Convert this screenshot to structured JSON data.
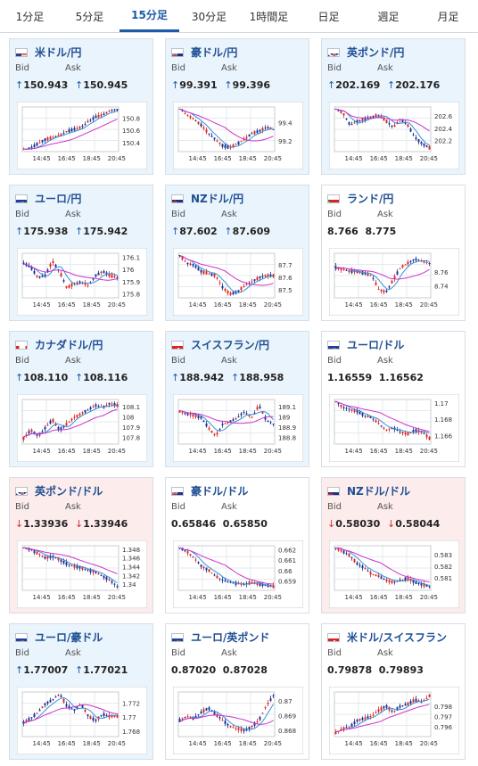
{
  "tabs": [
    "1分足",
    "5分足",
    "15分足",
    "30分足",
    "1時間足",
    "日足",
    "週足",
    "月足"
  ],
  "active_tab": 2,
  "bid_label": "Bid",
  "ask_label": "Ask",
  "x_ticks": [
    "14:45",
    "16:45",
    "18:45",
    "20:45"
  ],
  "colors": {
    "up_bg": "#eaf4fc",
    "down_bg": "#fcecec",
    "candle_up": "#e0261e",
    "candle_down": "#1b2f8f",
    "ma_short": "#3a8fd8",
    "ma_long": "#cc33cc"
  },
  "cards": [
    {
      "pair": "米ドル/円",
      "flag": "us",
      "trend": "up",
      "bid": "150.943",
      "ask": "150.945",
      "bid_dir": "up",
      "ask_dir": "up",
      "yticks": [
        "150.8",
        "150.6",
        "150.4"
      ],
      "chart": {
        "open": 150.32,
        "close": 150.93,
        "ymin": 150.28,
        "ymax": 150.95,
        "path": [
          0,
          0.05,
          0.15,
          0.25,
          0.3,
          0.35,
          0.45,
          0.5,
          0.55,
          0.7,
          0.8,
          0.85,
          0.95,
          1.0
        ]
      }
    },
    {
      "pair": "豪ドル/円",
      "flag": "au",
      "trend": "up",
      "bid": "99.391",
      "ask": "99.396",
      "bid_dir": "up",
      "ask_dir": "up",
      "yticks": [
        "99.4",
        "99.2"
      ],
      "chart": {
        "open": 99.52,
        "close": 99.39,
        "ymin": 99.1,
        "ymax": 99.55,
        "path": [
          1,
          0.85,
          0.75,
          0.6,
          0.4,
          0.25,
          0.1,
          0.05,
          0.15,
          0.25,
          0.4,
          0.45,
          0.55,
          0.5
        ]
      }
    },
    {
      "pair": "英ポンド/円",
      "flag": "gb",
      "trend": "up",
      "bid": "202.169",
      "ask": "202.176",
      "bid_dir": "up",
      "ask_dir": "up",
      "yticks": [
        "202.6",
        "202.4",
        "202.2"
      ],
      "chart": {
        "open": 202.68,
        "close": 202.17,
        "ymin": 202.05,
        "ymax": 202.72,
        "path": [
          1,
          0.9,
          0.6,
          0.7,
          0.75,
          0.8,
          0.85,
          0.7,
          0.55,
          0.75,
          0.6,
          0.3,
          0.15,
          0.05
        ]
      }
    },
    {
      "pair": "ユーロ/円",
      "flag": "eu",
      "trend": "up",
      "bid": "175.938",
      "ask": "175.942",
      "bid_dir": "up",
      "ask_dir": "up",
      "yticks": [
        "176.1",
        "176",
        "175.9",
        "175.8"
      ],
      "chart": {
        "open": 176.05,
        "close": 175.94,
        "ymin": 175.78,
        "ymax": 176.12,
        "path": [
          0.8,
          0.7,
          0.45,
          0.5,
          0.85,
          0.6,
          0.2,
          0.3,
          0.35,
          0.25,
          0.5,
          0.6,
          0.5,
          0.45
        ]
      }
    },
    {
      "pair": "NZドル/円",
      "flag": "nz",
      "trend": "up",
      "bid": "87.602",
      "ask": "87.609",
      "bid_dir": "up",
      "ask_dir": "up",
      "yticks": [
        "87.7",
        "87.6",
        "87.5"
      ],
      "chart": {
        "open": 87.72,
        "close": 87.6,
        "ymin": 87.45,
        "ymax": 87.78,
        "path": [
          1,
          0.8,
          0.75,
          0.6,
          0.55,
          0.5,
          0.2,
          0.05,
          0.1,
          0.25,
          0.35,
          0.45,
          0.5,
          0.5
        ]
      }
    },
    {
      "pair": "ランド/円",
      "flag": "za",
      "trend": "none",
      "bid": "8.766",
      "ask": "8.775",
      "bid_dir": "",
      "ask_dir": "",
      "yticks": [
        "8.76",
        "8.74"
      ],
      "chart": {
        "open": 8.77,
        "close": 8.766,
        "ymin": 8.725,
        "ymax": 8.785,
        "path": [
          0.7,
          0.65,
          0.6,
          0.6,
          0.55,
          0.5,
          0.15,
          0.1,
          0.4,
          0.7,
          0.8,
          0.9,
          0.85,
          0.8
        ]
      }
    },
    {
      "pair": "カナダドル/円",
      "flag": "ca",
      "trend": "up",
      "bid": "108.110",
      "ask": "108.116",
      "bid_dir": "up",
      "ask_dir": "up",
      "yticks": [
        "108.1",
        "108",
        "107.9",
        "107.8"
      ],
      "chart": {
        "open": 107.85,
        "close": 108.11,
        "ymin": 107.75,
        "ymax": 108.15,
        "path": [
          0.1,
          0.3,
          0.15,
          0.35,
          0.55,
          0.3,
          0.45,
          0.6,
          0.7,
          0.8,
          0.9,
          0.85,
          0.95,
          0.9
        ]
      }
    },
    {
      "pair": "スイスフラン/円",
      "flag": "ch",
      "trend": "up",
      "bid": "188.942",
      "ask": "188.958",
      "bid_dir": "up",
      "ask_dir": "up",
      "yticks": [
        "189.1",
        "189",
        "188.9",
        "188.8"
      ],
      "chart": {
        "open": 189.05,
        "close": 188.94,
        "ymin": 188.75,
        "ymax": 189.15,
        "path": [
          0.75,
          0.7,
          0.65,
          0.6,
          0.35,
          0.15,
          0.45,
          0.5,
          0.6,
          0.75,
          0.6,
          0.9,
          0.55,
          0.45
        ]
      }
    },
    {
      "pair": "ユーロ/ドル",
      "flag": "eu2",
      "trend": "none",
      "bid": "1.16559",
      "ask": "1.16562",
      "bid_dir": "",
      "ask_dir": "",
      "yticks": [
        "1.17",
        "1.168",
        "1.166"
      ],
      "chart": {
        "open": 1.1698,
        "close": 1.1656,
        "ymin": 1.1652,
        "ymax": 1.1702,
        "path": [
          1,
          0.85,
          0.8,
          0.75,
          0.65,
          0.6,
          0.45,
          0.3,
          0.35,
          0.25,
          0.2,
          0.3,
          0.25,
          0.1
        ]
      }
    },
    {
      "pair": "英ポンド/ドル",
      "flag": "gb2",
      "trend": "down",
      "bid": "1.33936",
      "ask": "1.33946",
      "bid_dir": "down",
      "ask_dir": "down",
      "yticks": [
        "1.348",
        "1.346",
        "1.344",
        "1.342",
        "1.34"
      ],
      "chart": {
        "open": 1.3478,
        "close": 1.3394,
        "ymin": 1.339,
        "ymax": 1.3484,
        "path": [
          1,
          0.95,
          0.85,
          0.75,
          0.78,
          0.7,
          0.6,
          0.55,
          0.5,
          0.45,
          0.4,
          0.3,
          0.2,
          0.05
        ]
      }
    },
    {
      "pair": "豪ドル/ドル",
      "flag": "au2",
      "trend": "none",
      "bid": "0.65846",
      "ask": "0.65850",
      "bid_dir": "",
      "ask_dir": "",
      "yticks": [
        "0.662",
        "0.661",
        "0.66",
        "0.659"
      ],
      "chart": {
        "open": 0.6619,
        "close": 0.65846,
        "ymin": 0.6583,
        "ymax": 0.6622,
        "path": [
          1,
          0.9,
          0.75,
          0.55,
          0.45,
          0.3,
          0.2,
          0.15,
          0.12,
          0.1,
          0.15,
          0.1,
          0.08,
          0.05
        ]
      }
    },
    {
      "pair": "NZドル/ドル",
      "flag": "nz2",
      "trend": "down",
      "bid": "0.58030",
      "ask": "0.58044",
      "bid_dir": "down",
      "ask_dir": "down",
      "yticks": [
        "0.583",
        "0.582",
        "0.581"
      ],
      "chart": {
        "open": 0.5834,
        "close": 0.5803,
        "ymin": 0.5801,
        "ymax": 0.5836,
        "path": [
          1,
          0.9,
          0.8,
          0.6,
          0.5,
          0.35,
          0.3,
          0.2,
          0.15,
          0.2,
          0.25,
          0.15,
          0.1,
          0.05
        ]
      }
    },
    {
      "pair": "ユーロ/豪ドル",
      "flag": "eu3",
      "trend": "up",
      "bid": "1.77007",
      "ask": "1.77021",
      "bid_dir": "up",
      "ask_dir": "up",
      "yticks": [
        "1.772",
        "1.77",
        "1.768"
      ],
      "chart": {
        "open": 1.7694,
        "close": 1.7701,
        "ymin": 1.7675,
        "ymax": 1.7733,
        "path": [
          0.3,
          0.4,
          0.55,
          0.75,
          0.85,
          1,
          0.7,
          0.6,
          0.75,
          0.45,
          0.35,
          0.5,
          0.45,
          0.45
        ]
      }
    },
    {
      "pair": "ユーロ/英ポンド",
      "flag": "eu4",
      "trend": "none",
      "bid": "0.87020",
      "ask": "0.87028",
      "bid_dir": "",
      "ask_dir": "",
      "yticks": [
        "0.87",
        "0.869",
        "0.868"
      ],
      "chart": {
        "open": 0.8685,
        "close": 0.8702,
        "ymin": 0.8677,
        "ymax": 0.8705,
        "path": [
          0.35,
          0.45,
          0.4,
          0.55,
          0.65,
          0.5,
          0.35,
          0.2,
          0.15,
          0.1,
          0.2,
          0.35,
          0.7,
          0.95
        ]
      }
    },
    {
      "pair": "米ドル/スイスフラン",
      "flag": "ch2",
      "trend": "none",
      "bid": "0.79878",
      "ask": "0.79893",
      "bid_dir": "",
      "ask_dir": "",
      "yticks": [
        "0.798",
        "0.797",
        "0.796"
      ],
      "chart": {
        "open": 0.7956,
        "close": 0.7988,
        "ymin": 0.7952,
        "ymax": 0.7992,
        "path": [
          0.05,
          0.15,
          0.2,
          0.35,
          0.4,
          0.45,
          0.6,
          0.7,
          0.55,
          0.7,
          0.75,
          0.85,
          0.8,
          0.95
        ]
      }
    }
  ]
}
